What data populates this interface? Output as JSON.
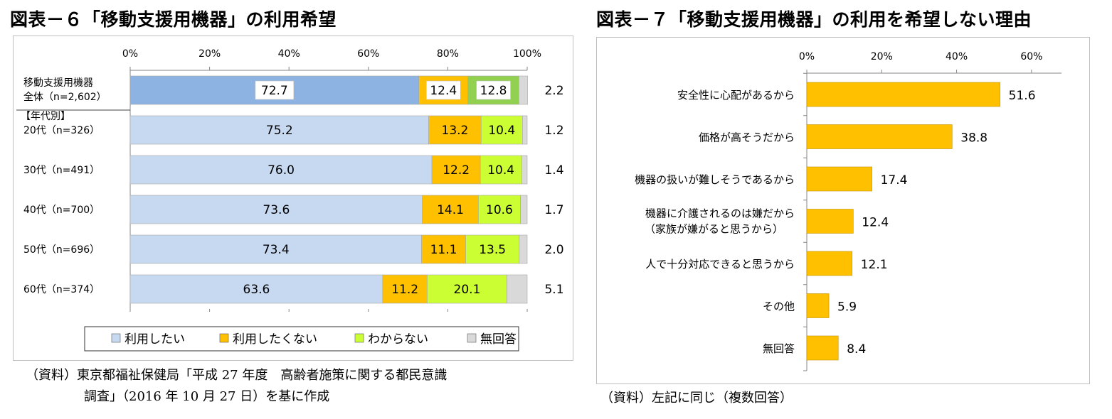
{
  "left": {
    "title": "図表－６「移動支援用機器」の利用希望",
    "source_line1": "（資料）東京都福祉保健局「平成 27 年度　高齢者施策に関する都民意識",
    "source_line2": "調査」（2016 年 10 月 27 日）を基に作成"
  },
  "right": {
    "title": "図表－７「移動支援用機器」の利用を希望しない理由",
    "source": "（資料）左記に同じ（複数回答）"
  },
  "charts": {
    "left": {
      "type": "bar",
      "stacked": true,
      "orientation": "horizontal",
      "x_ticks": [
        "0%",
        "20%",
        "40%",
        "60%",
        "80%",
        "100%"
      ],
      "xlim": [
        0,
        100
      ],
      "group_label": "【年代別】",
      "categories": [
        [
          "移動支援用機器",
          "全体（n=2,602）"
        ],
        [
          "20代（n=326）"
        ],
        [
          "30代（n=491）"
        ],
        [
          "40代（n=700）"
        ],
        [
          "50代（n=696）"
        ],
        [
          "60代（n=374）"
        ]
      ],
      "series": [
        {
          "name": "利用したい",
          "colors": [
            "#8db3e2",
            "#c6d9f1"
          ],
          "values": [
            72.7,
            75.2,
            76.0,
            73.6,
            73.4,
            63.6
          ]
        },
        {
          "name": "利用したくない",
          "colors": [
            "#ffc000",
            "#ffc000"
          ],
          "values": [
            12.4,
            13.2,
            12.2,
            14.1,
            11.1,
            11.2
          ]
        },
        {
          "name": "わからない",
          "colors": [
            "#92d050",
            "#ccff33"
          ],
          "values": [
            12.8,
            10.4,
            10.4,
            10.6,
            13.5,
            20.1
          ]
        },
        {
          "name": "無回答",
          "colors": [
            "#d9d9d9",
            "#d9d9d9"
          ],
          "values": [
            2.2,
            1.2,
            1.4,
            1.7,
            2.0,
            5.1
          ]
        }
      ],
      "labels": {
        "利用したい": [
          "72.7",
          "75.2",
          "76.0",
          "73.6",
          "73.4",
          "63.6"
        ],
        "利用したくない": [
          "12.4",
          "13.2",
          "12.2",
          "14.1",
          "11.1",
          "11.2"
        ],
        "わからない": [
          "12.8",
          "10.4",
          "10.4",
          "10.6",
          "13.5",
          "20.1"
        ],
        "無回答": [
          "2.2",
          "1.2",
          "1.4",
          "1.7",
          "2.0",
          "5.1"
        ]
      },
      "legend_position": "bottom"
    },
    "right": {
      "type": "bar",
      "orientation": "horizontal",
      "color": "#ffc000",
      "x_ticks": [
        "0%",
        "20%",
        "40%",
        "60%"
      ],
      "xlim": [
        0,
        68
      ],
      "categories": [
        [
          "安全性に心配があるから"
        ],
        [
          "価格が高そうだから"
        ],
        [
          "機器の扱いが難しそうであるから"
        ],
        [
          "機器に介護されるのは嫌だから",
          "（家族が嫌がると思うから）"
        ],
        [
          "人で十分対応できると思うから"
        ],
        [
          "その他"
        ],
        [
          "無回答"
        ]
      ],
      "values": [
        51.6,
        38.8,
        17.4,
        12.4,
        12.1,
        5.9,
        8.4
      ],
      "labels": [
        "51.6",
        "38.8",
        "17.4",
        "12.4",
        "12.1",
        "5.9",
        "8.4"
      ]
    }
  }
}
